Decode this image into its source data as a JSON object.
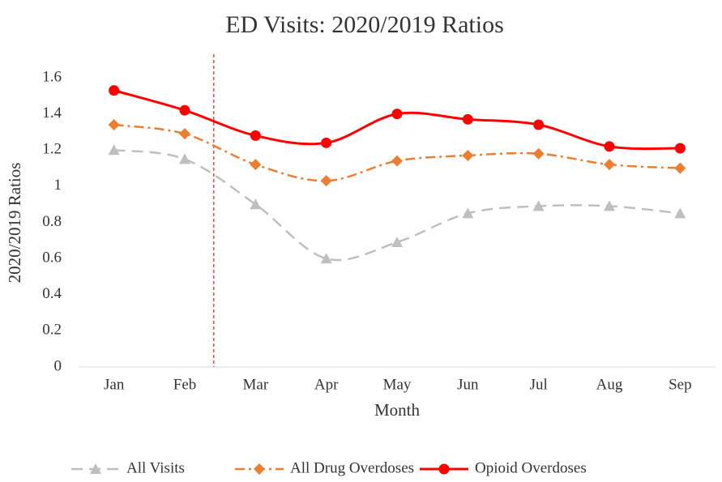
{
  "chart_data": {
    "type": "line",
    "title": "ED Visits: 2020/2019 Ratios",
    "x_label": "Month",
    "y_label": "2020/2019 Ratios",
    "categories": [
      "Jan",
      "Feb",
      "Mar",
      "Apr",
      "May",
      "Jun",
      "Jul",
      "Aug",
      "Sep"
    ],
    "series": [
      {
        "name": "All Visits",
        "color": "#bfbfbf",
        "marker": "triangle",
        "dash": "dashed",
        "values": [
          1.2,
          1.15,
          0.9,
          0.6,
          0.69,
          0.85,
          0.89,
          0.89,
          0.85
        ]
      },
      {
        "name": "All Drug Overdoses",
        "color": "#ed7d31",
        "marker": "diamond",
        "dash": "dash-dot",
        "values": [
          1.34,
          1.29,
          1.12,
          1.03,
          1.14,
          1.17,
          1.18,
          1.12,
          1.1
        ]
      },
      {
        "name": "Opioid Overdoses",
        "color": "#ff0000",
        "marker": "circle",
        "dash": "solid",
        "values": [
          1.53,
          1.42,
          1.28,
          1.24,
          1.4,
          1.37,
          1.34,
          1.22,
          1.21
        ]
      }
    ],
    "ylim": [
      0,
      1.6
    ],
    "yticks": [
      0,
      0.2,
      0.4,
      0.6,
      0.8,
      1,
      1.2,
      1.4,
      1.6
    ],
    "grid": false,
    "smooth": true,
    "legend": "bottom"
  }
}
